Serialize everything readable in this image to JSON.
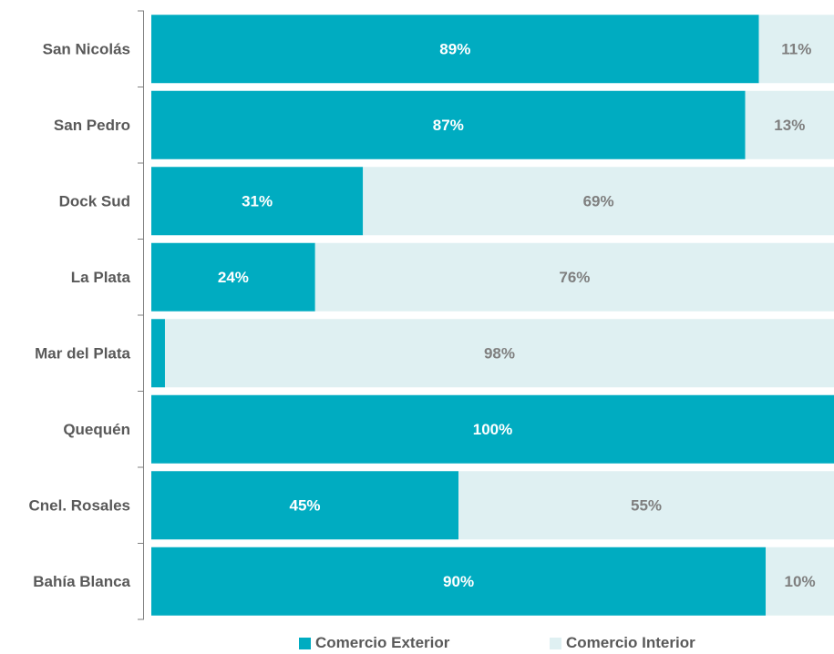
{
  "chart_data": {
    "type": "bar",
    "orientation": "horizontal",
    "stacked": true,
    "percent_stacked": true,
    "categories": [
      "San Nicolás",
      "San Pedro",
      "Dock Sud",
      "La Plata",
      "Mar del Plata",
      "Quequén",
      "Cnel. Rosales",
      "Bahía Blanca"
    ],
    "series": [
      {
        "name": "Comercio Exterior",
        "color": "#00ACC1",
        "label_color": "#ffffff",
        "values": [
          89,
          87,
          31,
          24,
          2,
          100,
          45,
          90
        ],
        "labels": [
          "89%",
          "87%",
          "31%",
          "24%",
          "",
          "100%",
          "45%",
          "90%"
        ]
      },
      {
        "name": "Comercio Interior",
        "color": "#DFF0F2",
        "label_color": "#7F7F7F",
        "values": [
          11,
          13,
          69,
          76,
          98,
          0,
          55,
          10
        ],
        "labels": [
          "11%",
          "13%",
          "69%",
          "76%",
          "98%",
          "",
          "55%",
          "10%"
        ]
      }
    ],
    "xlim": [
      0,
      100
    ],
    "grid": false,
    "legend_position": "bottom"
  }
}
